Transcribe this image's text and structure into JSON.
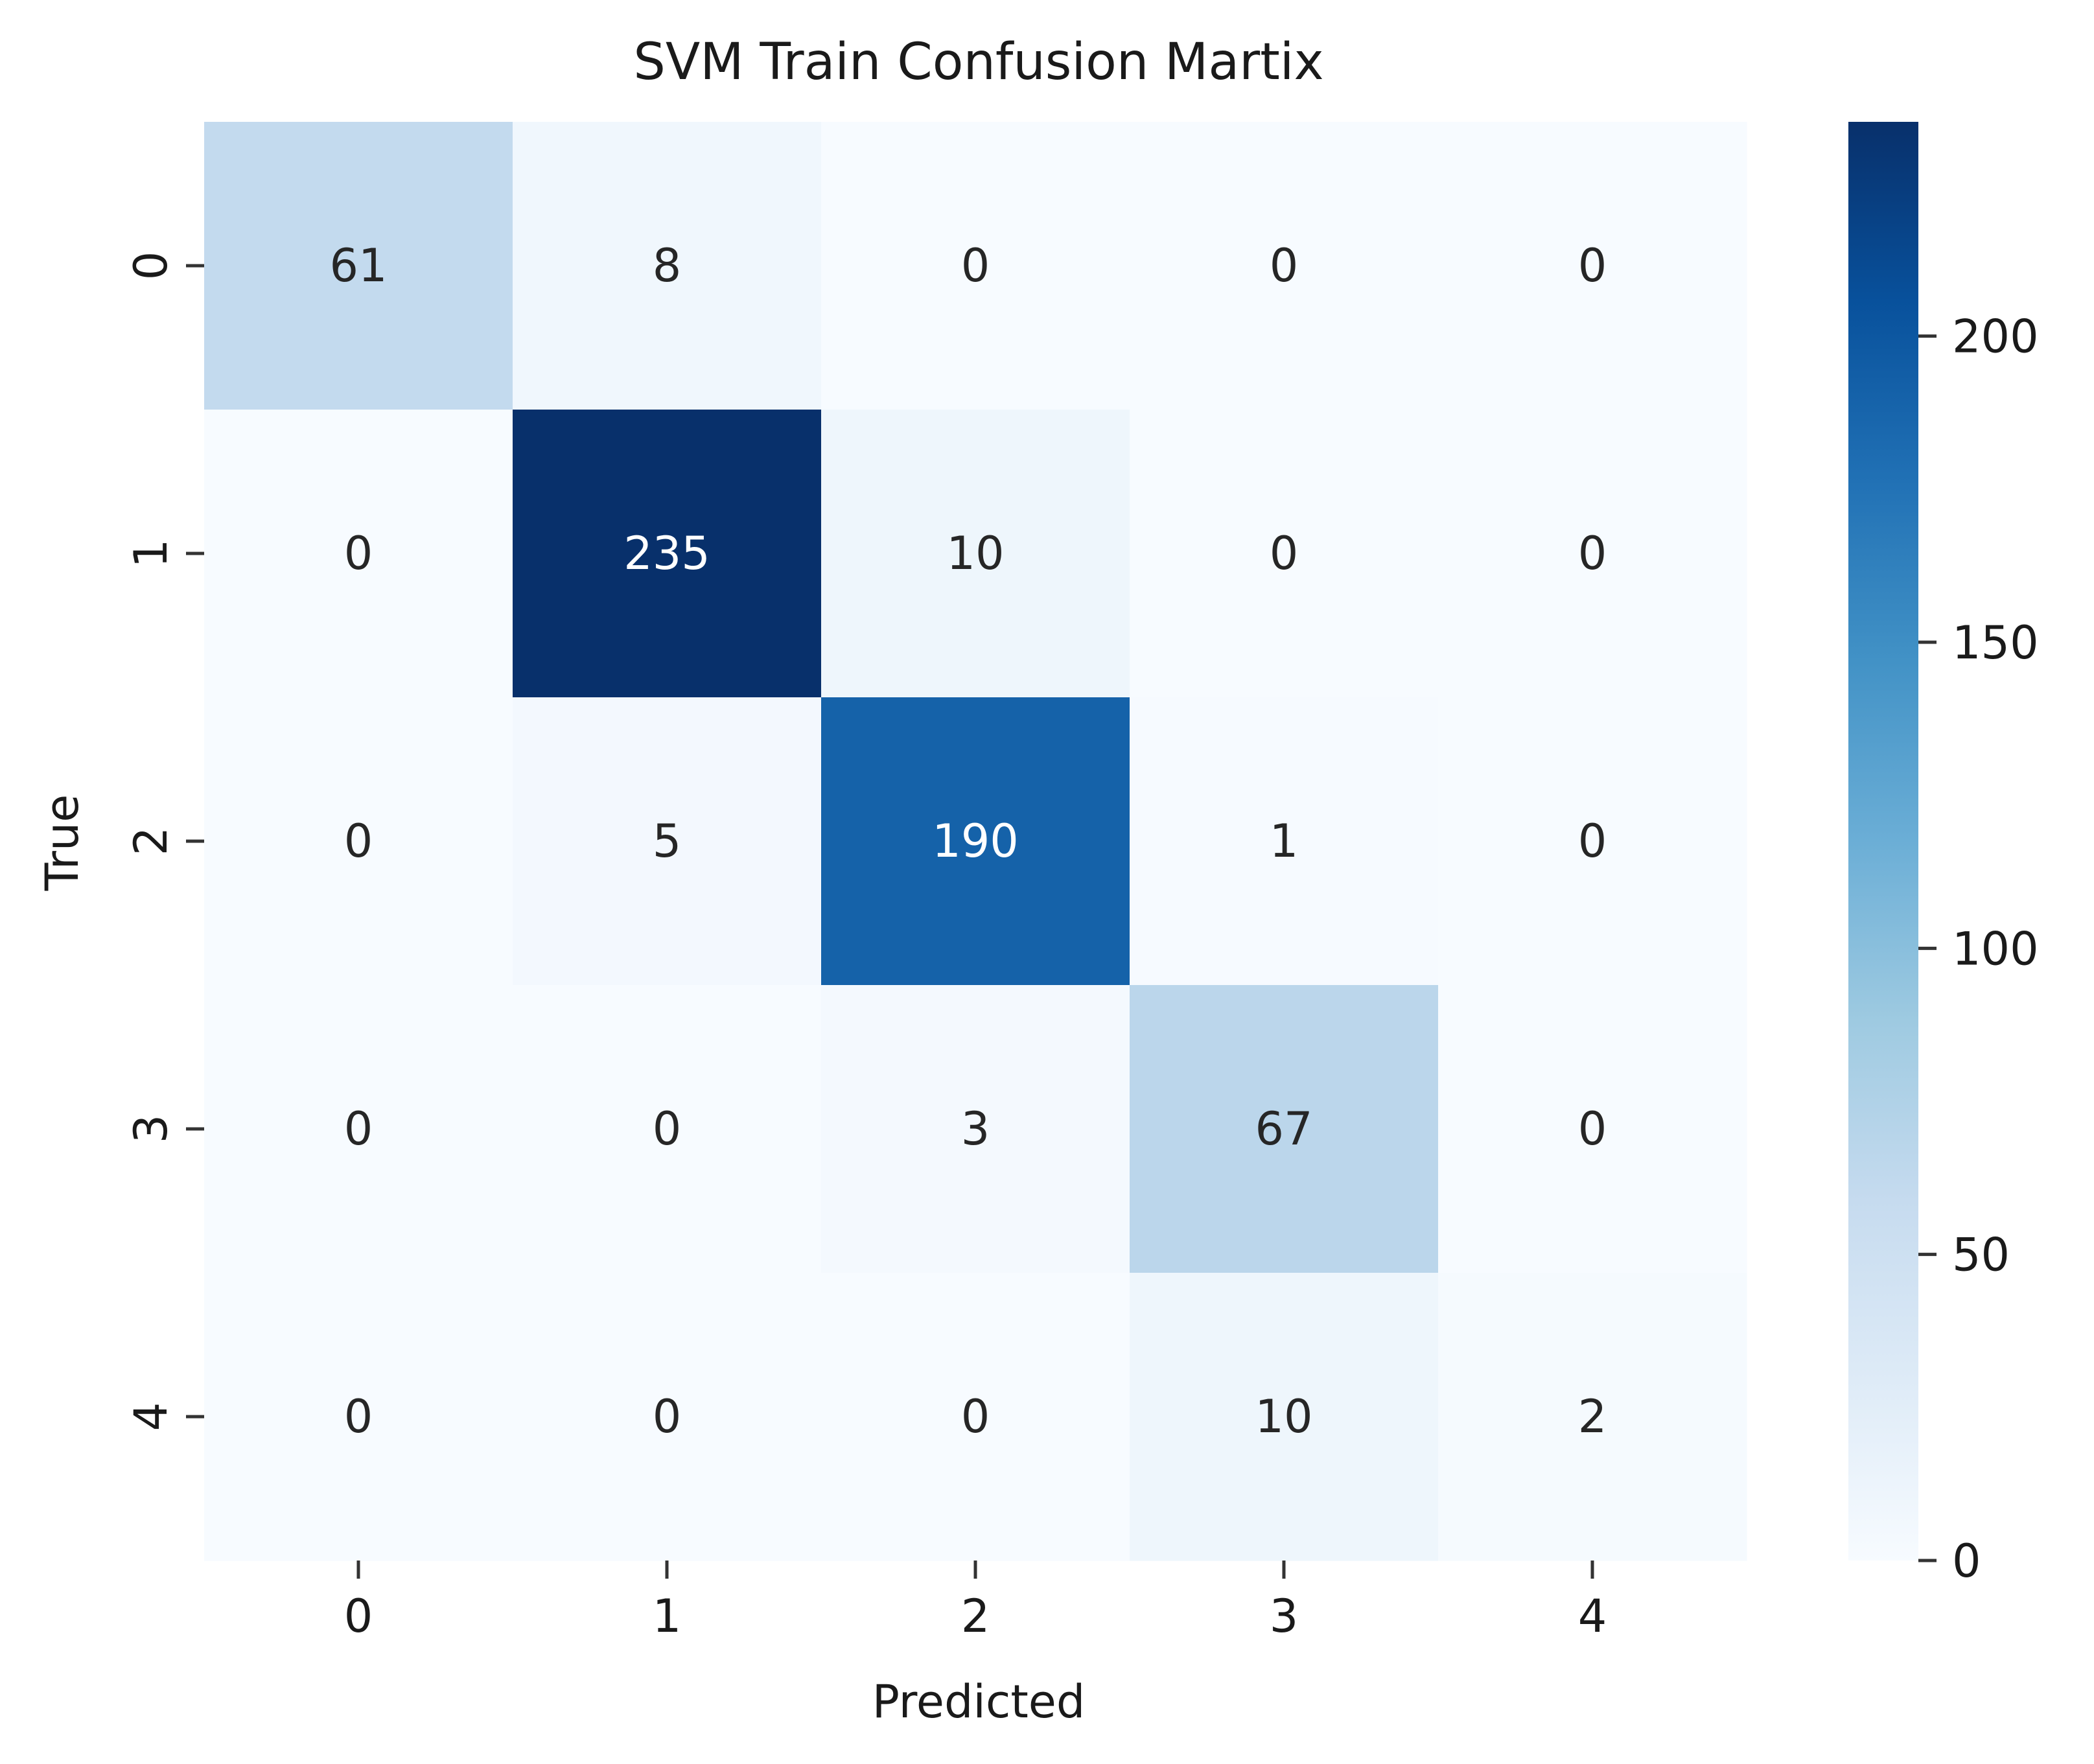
{
  "chart_data": {
    "type": "heatmap",
    "title": "SVM Train Confusion Martix",
    "xlabel": "Predicted",
    "ylabel": "True",
    "x_categories": [
      "0",
      "1",
      "2",
      "3",
      "4"
    ],
    "y_categories": [
      "0",
      "1",
      "2",
      "3",
      "4"
    ],
    "values": [
      [
        61,
        8,
        0,
        0,
        0
      ],
      [
        0,
        235,
        10,
        0,
        0
      ],
      [
        0,
        5,
        190,
        1,
        0
      ],
      [
        0,
        0,
        3,
        67,
        0
      ],
      [
        0,
        0,
        0,
        10,
        2
      ]
    ],
    "colorscale": "Blues",
    "color_range": [
      0,
      235
    ],
    "colorbar_ticks": [
      0,
      50,
      100,
      150,
      200
    ],
    "colorbar_tick_labels": [
      "0",
      "50",
      "100",
      "150",
      "200"
    ],
    "grid": false,
    "colors": {
      "low": "#f7fbff",
      "high": "#08306b",
      "text_dark": "#262626",
      "text_light": "#ffffff"
    }
  }
}
